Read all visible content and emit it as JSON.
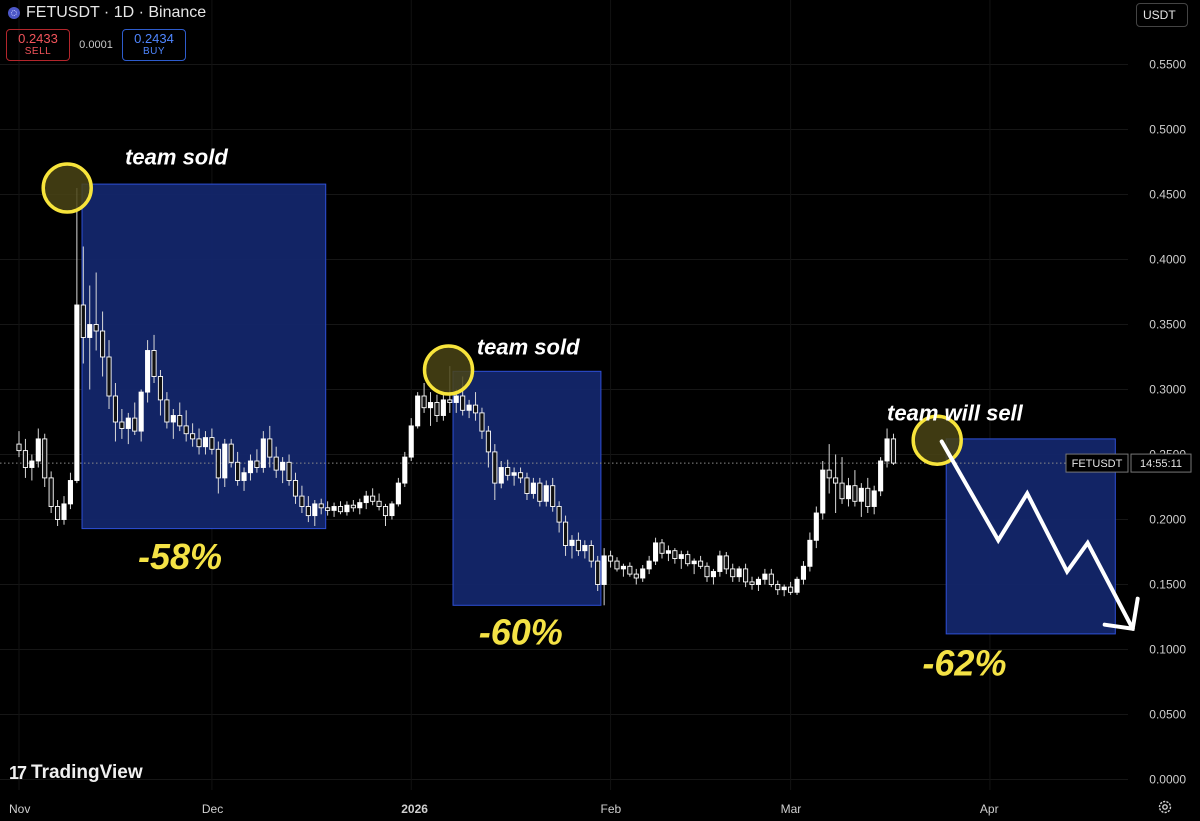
{
  "header": {
    "symbol_line": "FETUSDT · 1D · Binance",
    "icon": "exchange-dot-icon"
  },
  "order": {
    "sell_price": "0.2433",
    "sell_label": "SELL",
    "spread": "0.0001",
    "buy_price": "0.2434",
    "buy_label": "BUY"
  },
  "currency": "USDT",
  "price_tag": {
    "symbol": "FETUSDT",
    "countdown": "14:55:11"
  },
  "branding": {
    "mark": "17",
    "name": "TradingView"
  },
  "colors": {
    "annotation_box": "#14276e",
    "annotation_border": "#2e4fd6",
    "circle": "#f7e43b",
    "percent": "#f4e245",
    "candle": "#ffffff"
  },
  "chart_data": {
    "type": "candlestick",
    "title": "",
    "xlabel": "",
    "ylabel": "",
    "ylim": [
      -0.001,
      0.575
    ],
    "y_ticks": [
      "0.5500",
      "0.5000",
      "0.4500",
      "0.4000",
      "0.3500",
      "0.3000",
      "0.2500",
      "0.2000",
      "0.1500",
      "0.1000",
      "0.0500",
      "0.0000"
    ],
    "x_ticks": [
      {
        "label": "Nov",
        "day": 0
      },
      {
        "label": "Dec",
        "day": 30
      },
      {
        "label": "2026",
        "day": 61,
        "bold": true
      },
      {
        "label": "Feb",
        "day": 92
      },
      {
        "label": "Mar",
        "day": 120
      },
      {
        "label": "Apr",
        "day": 151
      }
    ],
    "last_price": 0.2434,
    "candles": [
      [
        0.258,
        0.268,
        0.248,
        0.253
      ],
      [
        0.253,
        0.262,
        0.232,
        0.24
      ],
      [
        0.24,
        0.25,
        0.23,
        0.245
      ],
      [
        0.245,
        0.27,
        0.24,
        0.262
      ],
      [
        0.262,
        0.266,
        0.225,
        0.232
      ],
      [
        0.232,
        0.237,
        0.205,
        0.21
      ],
      [
        0.21,
        0.215,
        0.195,
        0.2
      ],
      [
        0.2,
        0.218,
        0.196,
        0.212
      ],
      [
        0.212,
        0.236,
        0.208,
        0.23
      ],
      [
        0.23,
        0.455,
        0.228,
        0.365
      ],
      [
        0.365,
        0.41,
        0.32,
        0.34
      ],
      [
        0.34,
        0.38,
        0.3,
        0.35
      ],
      [
        0.35,
        0.39,
        0.33,
        0.345
      ],
      [
        0.345,
        0.36,
        0.31,
        0.325
      ],
      [
        0.325,
        0.338,
        0.285,
        0.295
      ],
      [
        0.295,
        0.305,
        0.26,
        0.275
      ],
      [
        0.275,
        0.285,
        0.262,
        0.27
      ],
      [
        0.27,
        0.282,
        0.258,
        0.278
      ],
      [
        0.278,
        0.29,
        0.265,
        0.268
      ],
      [
        0.268,
        0.3,
        0.26,
        0.298
      ],
      [
        0.298,
        0.338,
        0.29,
        0.33
      ],
      [
        0.33,
        0.342,
        0.305,
        0.31
      ],
      [
        0.31,
        0.315,
        0.28,
        0.292
      ],
      [
        0.292,
        0.298,
        0.27,
        0.275
      ],
      [
        0.275,
        0.285,
        0.262,
        0.28
      ],
      [
        0.28,
        0.29,
        0.268,
        0.272
      ],
      [
        0.272,
        0.284,
        0.26,
        0.266
      ],
      [
        0.266,
        0.274,
        0.256,
        0.262
      ],
      [
        0.262,
        0.27,
        0.25,
        0.256
      ],
      [
        0.256,
        0.268,
        0.25,
        0.263
      ],
      [
        0.263,
        0.27,
        0.25,
        0.254
      ],
      [
        0.254,
        0.26,
        0.22,
        0.232
      ],
      [
        0.232,
        0.262,
        0.225,
        0.258
      ],
      [
        0.258,
        0.262,
        0.24,
        0.244
      ],
      [
        0.244,
        0.252,
        0.226,
        0.23
      ],
      [
        0.23,
        0.24,
        0.222,
        0.236
      ],
      [
        0.236,
        0.25,
        0.23,
        0.245
      ],
      [
        0.245,
        0.254,
        0.236,
        0.24
      ],
      [
        0.24,
        0.268,
        0.236,
        0.262
      ],
      [
        0.262,
        0.272,
        0.24,
        0.248
      ],
      [
        0.248,
        0.256,
        0.232,
        0.238
      ],
      [
        0.238,
        0.248,
        0.228,
        0.244
      ],
      [
        0.244,
        0.25,
        0.226,
        0.23
      ],
      [
        0.23,
        0.236,
        0.212,
        0.218
      ],
      [
        0.218,
        0.226,
        0.205,
        0.21
      ],
      [
        0.21,
        0.218,
        0.198,
        0.203
      ],
      [
        0.203,
        0.215,
        0.195,
        0.212
      ],
      [
        0.212,
        0.216,
        0.204,
        0.209
      ],
      [
        0.209,
        0.214,
        0.203,
        0.207
      ],
      [
        0.207,
        0.213,
        0.202,
        0.21
      ],
      [
        0.21,
        0.214,
        0.204,
        0.206
      ],
      [
        0.206,
        0.214,
        0.203,
        0.211
      ],
      [
        0.211,
        0.215,
        0.206,
        0.209
      ],
      [
        0.209,
        0.216,
        0.204,
        0.213
      ],
      [
        0.213,
        0.222,
        0.208,
        0.218
      ],
      [
        0.218,
        0.224,
        0.211,
        0.214
      ],
      [
        0.214,
        0.22,
        0.207,
        0.21
      ],
      [
        0.21,
        0.212,
        0.195,
        0.203
      ],
      [
        0.203,
        0.214,
        0.2,
        0.212
      ],
      [
        0.212,
        0.232,
        0.21,
        0.228
      ],
      [
        0.228,
        0.252,
        0.225,
        0.248
      ],
      [
        0.248,
        0.278,
        0.245,
        0.272
      ],
      [
        0.272,
        0.298,
        0.27,
        0.295
      ],
      [
        0.295,
        0.305,
        0.282,
        0.286
      ],
      [
        0.286,
        0.298,
        0.272,
        0.29
      ],
      [
        0.29,
        0.296,
        0.275,
        0.28
      ],
      [
        0.28,
        0.298,
        0.276,
        0.292
      ],
      [
        0.292,
        0.318,
        0.282,
        0.29
      ],
      [
        0.29,
        0.3,
        0.282,
        0.295
      ],
      [
        0.295,
        0.31,
        0.28,
        0.284
      ],
      [
        0.284,
        0.292,
        0.278,
        0.288
      ],
      [
        0.288,
        0.298,
        0.276,
        0.282
      ],
      [
        0.282,
        0.286,
        0.262,
        0.268
      ],
      [
        0.268,
        0.272,
        0.24,
        0.252
      ],
      [
        0.252,
        0.258,
        0.215,
        0.228
      ],
      [
        0.228,
        0.245,
        0.224,
        0.24
      ],
      [
        0.24,
        0.246,
        0.23,
        0.234
      ],
      [
        0.234,
        0.24,
        0.226,
        0.236
      ],
      [
        0.236,
        0.24,
        0.228,
        0.232
      ],
      [
        0.232,
        0.236,
        0.215,
        0.22
      ],
      [
        0.22,
        0.232,
        0.216,
        0.228
      ],
      [
        0.228,
        0.232,
        0.21,
        0.214
      ],
      [
        0.214,
        0.23,
        0.21,
        0.226
      ],
      [
        0.226,
        0.232,
        0.206,
        0.21
      ],
      [
        0.21,
        0.214,
        0.19,
        0.198
      ],
      [
        0.198,
        0.203,
        0.172,
        0.18
      ],
      [
        0.18,
        0.188,
        0.17,
        0.184
      ],
      [
        0.184,
        0.19,
        0.172,
        0.176
      ],
      [
        0.176,
        0.184,
        0.17,
        0.18
      ],
      [
        0.18,
        0.184,
        0.163,
        0.168
      ],
      [
        0.168,
        0.172,
        0.145,
        0.15
      ],
      [
        0.15,
        0.178,
        0.134,
        0.172
      ],
      [
        0.172,
        0.176,
        0.163,
        0.168
      ],
      [
        0.168,
        0.171,
        0.16,
        0.162
      ],
      [
        0.162,
        0.166,
        0.156,
        0.164
      ],
      [
        0.164,
        0.167,
        0.156,
        0.158
      ],
      [
        0.158,
        0.162,
        0.15,
        0.155
      ],
      [
        0.155,
        0.165,
        0.152,
        0.162
      ],
      [
        0.162,
        0.172,
        0.158,
        0.168
      ],
      [
        0.168,
        0.186,
        0.165,
        0.182
      ],
      [
        0.182,
        0.185,
        0.17,
        0.174
      ],
      [
        0.174,
        0.18,
        0.168,
        0.176
      ],
      [
        0.176,
        0.178,
        0.166,
        0.17
      ],
      [
        0.17,
        0.176,
        0.162,
        0.173
      ],
      [
        0.173,
        0.176,
        0.164,
        0.166
      ],
      [
        0.166,
        0.17,
        0.158,
        0.168
      ],
      [
        0.168,
        0.172,
        0.162,
        0.164
      ],
      [
        0.164,
        0.167,
        0.152,
        0.156
      ],
      [
        0.156,
        0.162,
        0.15,
        0.16
      ],
      [
        0.16,
        0.176,
        0.156,
        0.172
      ],
      [
        0.172,
        0.175,
        0.158,
        0.162
      ],
      [
        0.162,
        0.166,
        0.152,
        0.156
      ],
      [
        0.156,
        0.164,
        0.152,
        0.162
      ],
      [
        0.162,
        0.166,
        0.148,
        0.152
      ],
      [
        0.152,
        0.156,
        0.146,
        0.15
      ],
      [
        0.15,
        0.156,
        0.145,
        0.154
      ],
      [
        0.154,
        0.162,
        0.15,
        0.158
      ],
      [
        0.158,
        0.162,
        0.148,
        0.15
      ],
      [
        0.15,
        0.153,
        0.142,
        0.146
      ],
      [
        0.146,
        0.15,
        0.141,
        0.148
      ],
      [
        0.148,
        0.152,
        0.142,
        0.144
      ],
      [
        0.144,
        0.156,
        0.142,
        0.154
      ],
      [
        0.154,
        0.168,
        0.15,
        0.164
      ],
      [
        0.164,
        0.19,
        0.16,
        0.184
      ],
      [
        0.184,
        0.21,
        0.178,
        0.205
      ],
      [
        0.205,
        0.245,
        0.2,
        0.238
      ],
      [
        0.238,
        0.258,
        0.22,
        0.232
      ],
      [
        0.232,
        0.25,
        0.205,
        0.228
      ],
      [
        0.228,
        0.248,
        0.212,
        0.216
      ],
      [
        0.216,
        0.232,
        0.21,
        0.226
      ],
      [
        0.226,
        0.238,
        0.21,
        0.214
      ],
      [
        0.214,
        0.228,
        0.202,
        0.224
      ],
      [
        0.224,
        0.232,
        0.205,
        0.21
      ],
      [
        0.21,
        0.226,
        0.204,
        0.222
      ],
      [
        0.222,
        0.248,
        0.218,
        0.245
      ],
      [
        0.245,
        0.27,
        0.24,
        0.262
      ],
      [
        0.262,
        0.266,
        0.242,
        0.2434
      ]
    ]
  },
  "annotations": {
    "boxes": [
      {
        "day_start": 9.8,
        "day_end": 47.7,
        "top": 0.458,
        "bottom": 0.193
      },
      {
        "day_start": 67.5,
        "day_end": 90.5,
        "top": 0.314,
        "bottom": 0.134
      },
      {
        "day_start": 144.2,
        "day_end": 170.5,
        "top": 0.262,
        "bottom": 0.112
      }
    ],
    "circles": [
      {
        "day": 7.5,
        "price": 0.455
      },
      {
        "day": 66.8,
        "price": 0.315
      },
      {
        "day": 142.8,
        "price": 0.261
      }
    ],
    "labels": [
      {
        "text": "team sold",
        "day": 16.5,
        "price": 0.473
      },
      {
        "text": "team sold",
        "day": 71.2,
        "price": 0.327
      },
      {
        "text": "team will sell",
        "day": 135.0,
        "price": 0.276
      }
    ],
    "percents": [
      {
        "text": "-58%",
        "day": 18.5,
        "price": 0.162
      },
      {
        "text": "-60%",
        "day": 71.5,
        "price": 0.104
      },
      {
        "text": "-62%",
        "day": 140.5,
        "price": 0.08
      }
    ],
    "arrow_path": [
      {
        "day": 143.5,
        "price": 0.26
      },
      {
        "day": 152.3,
        "price": 0.184
      },
      {
        "day": 156.8,
        "price": 0.22
      },
      {
        "day": 163.0,
        "price": 0.16
      },
      {
        "day": 166.2,
        "price": 0.182
      },
      {
        "day": 173.2,
        "price": 0.116
      }
    ]
  }
}
